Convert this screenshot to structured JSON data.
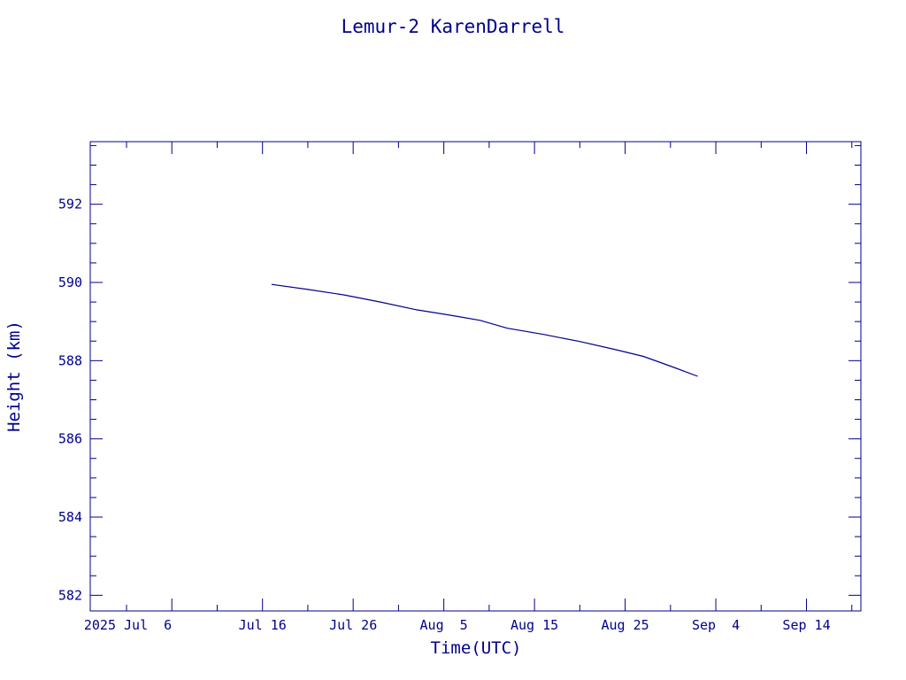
{
  "chart_data": {
    "type": "line",
    "title": "Lemur-2 KarenDarrell",
    "xlabel": "Time(UTC)",
    "ylabel": "Height (km)",
    "x_ticks": [
      "2025 Jul  6",
      "Jul 16",
      "Jul 26",
      "Aug  5",
      "Aug 15",
      "Aug 25",
      "Sep  4",
      "Sep 14"
    ],
    "x_tick_dates": [
      "2025-07-06",
      "2025-07-16",
      "2025-07-26",
      "2025-08-05",
      "2025-08-15",
      "2025-08-25",
      "2025-09-04",
      "2025-09-14"
    ],
    "xlim": [
      "2025-06-27",
      "2025-09-20"
    ],
    "ylim": [
      581.6,
      593.6
    ],
    "y_ticks": [
      582,
      584,
      586,
      588,
      590,
      592
    ],
    "grid": false,
    "colors": {
      "axis": "#00008b",
      "series": "#00008b"
    },
    "series": [
      {
        "x": [
          "2025-07-17",
          "2025-07-21",
          "2025-07-25",
          "2025-07-29",
          "2025-08-02",
          "2025-08-06",
          "2025-08-09",
          "2025-08-12",
          "2025-08-16",
          "2025-08-20",
          "2025-08-24",
          "2025-08-27",
          "2025-08-30",
          "2025-09-02"
        ],
        "y": [
          589.95,
          589.82,
          589.68,
          589.5,
          589.3,
          589.15,
          589.03,
          588.83,
          588.67,
          588.49,
          588.28,
          588.11,
          587.86,
          587.6
        ]
      }
    ]
  }
}
